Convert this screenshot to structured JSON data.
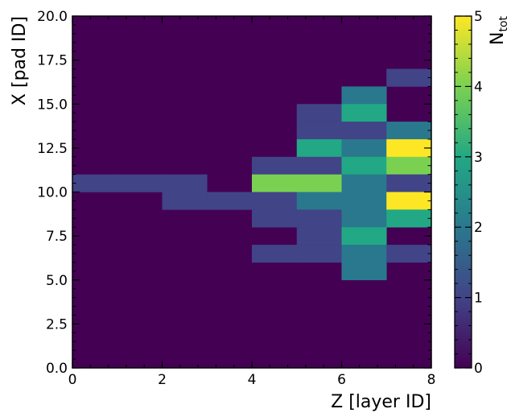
{
  "chart_data": {
    "type": "heatmap",
    "xlabel": "Z [layer ID]",
    "ylabel": "X [pad ID]",
    "xlim": [
      0,
      8
    ],
    "ylim": [
      0,
      20
    ],
    "x_bin_width": 1,
    "y_bin_width": 1,
    "x_ticks": [
      "0",
      "2",
      "4",
      "6",
      "8"
    ],
    "y_ticks": [
      "0.0",
      "2.5",
      "5.0",
      "7.5",
      "10.0",
      "12.5",
      "15.0",
      "17.5",
      "20.0"
    ],
    "colorbar": {
      "label_main": "N",
      "label_sub": "tot",
      "range": [
        0,
        5
      ],
      "ticks": [
        "0",
        "1",
        "2",
        "3",
        "4",
        "5"
      ],
      "colormap": "viridis"
    },
    "background_value": 0,
    "cells": [
      {
        "z": 0,
        "x": 10,
        "value": 1
      },
      {
        "z": 1,
        "x": 10,
        "value": 1
      },
      {
        "z": 2,
        "x": 10,
        "value": 1
      },
      {
        "z": 2,
        "x": 9,
        "value": 1
      },
      {
        "z": 3,
        "x": 9,
        "value": 1
      },
      {
        "z": 4,
        "x": 11,
        "value": 1
      },
      {
        "z": 4,
        "x": 10,
        "value": 4
      },
      {
        "z": 4,
        "x": 9,
        "value": 1
      },
      {
        "z": 4,
        "x": 8,
        "value": 1
      },
      {
        "z": 4,
        "x": 6,
        "value": 1
      },
      {
        "z": 5,
        "x": 14,
        "value": 1
      },
      {
        "z": 5,
        "x": 13,
        "value": 1
      },
      {
        "z": 5,
        "x": 12,
        "value": 3
      },
      {
        "z": 5,
        "x": 11,
        "value": 1
      },
      {
        "z": 5,
        "x": 10,
        "value": 4
      },
      {
        "z": 5,
        "x": 9,
        "value": 2
      },
      {
        "z": 5,
        "x": 8,
        "value": 1
      },
      {
        "z": 5,
        "x": 7,
        "value": 1
      },
      {
        "z": 5,
        "x": 6,
        "value": 1
      },
      {
        "z": 6,
        "x": 15,
        "value": 2
      },
      {
        "z": 6,
        "x": 14,
        "value": 3
      },
      {
        "z": 6,
        "x": 13,
        "value": 1
      },
      {
        "z": 6,
        "x": 12,
        "value": 2
      },
      {
        "z": 6,
        "x": 11,
        "value": 3
      },
      {
        "z": 6,
        "x": 10,
        "value": 2
      },
      {
        "z": 6,
        "x": 9,
        "value": 2
      },
      {
        "z": 6,
        "x": 8,
        "value": 2
      },
      {
        "z": 6,
        "x": 7,
        "value": 3
      },
      {
        "z": 6,
        "x": 6,
        "value": 2
      },
      {
        "z": 6,
        "x": 5,
        "value": 2
      },
      {
        "z": 7,
        "x": 16,
        "value": 1
      },
      {
        "z": 7,
        "x": 13,
        "value": 2
      },
      {
        "z": 7,
        "x": 12,
        "value": 5
      },
      {
        "z": 7,
        "x": 11,
        "value": 4
      },
      {
        "z": 7,
        "x": 10,
        "value": 1
      },
      {
        "z": 7,
        "x": 9,
        "value": 5
      },
      {
        "z": 7,
        "x": 8,
        "value": 3
      },
      {
        "z": 7,
        "x": 6,
        "value": 1
      }
    ]
  }
}
